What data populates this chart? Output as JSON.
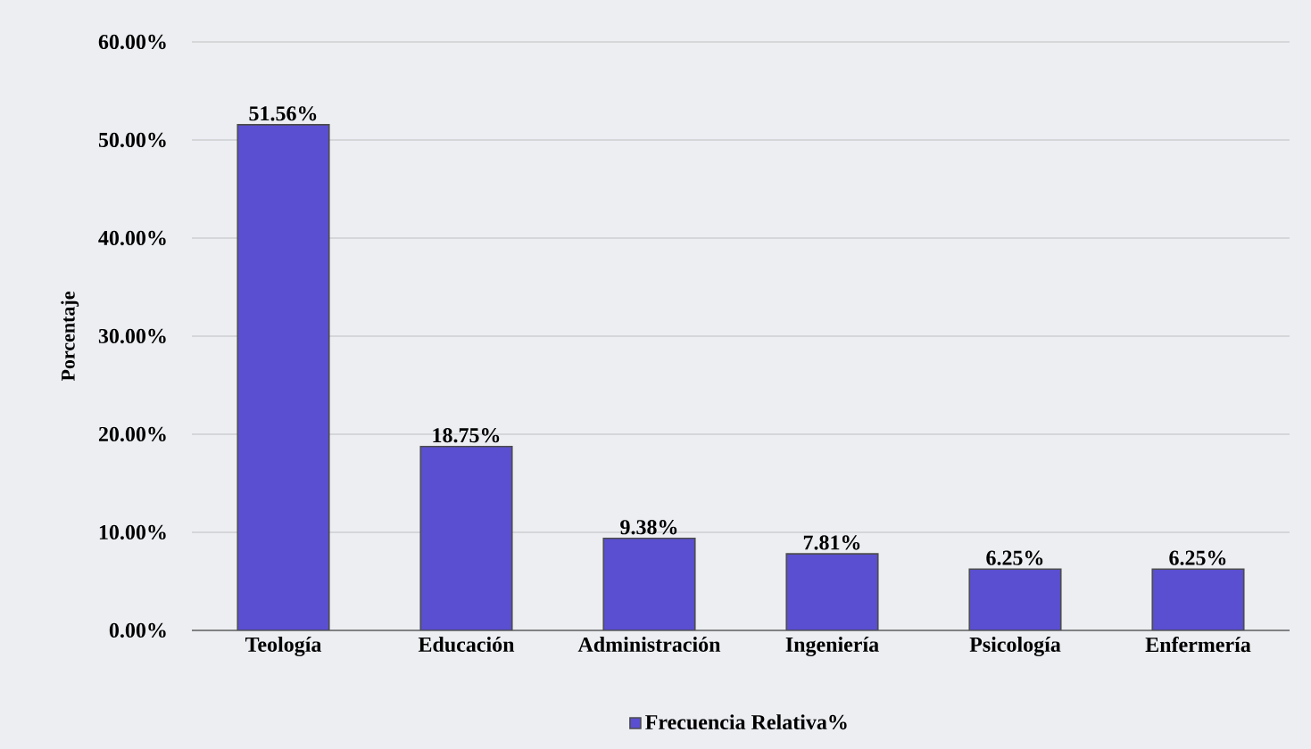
{
  "chart_data": {
    "type": "bar",
    "ylabel": "Porcentaje",
    "categories": [
      "Teología",
      "Educación",
      "Administración",
      "Ingeniería",
      "Psicología",
      "Enfermería"
    ],
    "series": [
      {
        "name": "Frecuencia  Relativa%",
        "color": "#5a4fd0",
        "values": [
          51.56,
          18.75,
          9.38,
          7.81,
          6.25,
          6.25
        ],
        "value_labels": [
          "51.56%",
          "18.75%",
          "9.38%",
          "7.81%",
          "6.25%",
          "6.25%"
        ]
      }
    ],
    "ylim": [
      0,
      60
    ],
    "yticks": [
      {
        "value": 0,
        "label": "0.00%"
      },
      {
        "value": 10,
        "label": "10.00%"
      },
      {
        "value": 20,
        "label": "20.00%"
      },
      {
        "value": 30,
        "label": "30.00%"
      },
      {
        "value": 40,
        "label": "40.00%"
      },
      {
        "value": 50,
        "label": "50.00%"
      },
      {
        "value": 60,
        "label": "60.00%"
      }
    ],
    "grid": "y",
    "legend": "bottom"
  }
}
